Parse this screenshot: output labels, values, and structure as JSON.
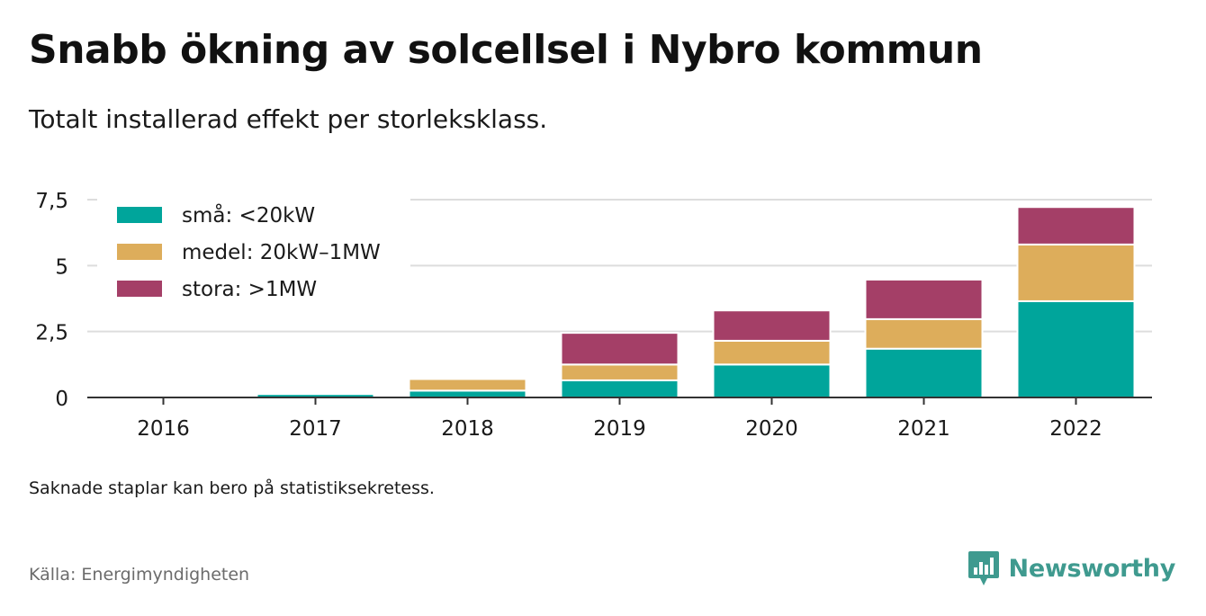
{
  "title": "Snabb ökning av solcellsel i Nybro kommun",
  "subtitle": "Totalt installerad effekt per storleksklass.",
  "note": "Saknade staplar kan bero på statistiksekretess.",
  "source": "Källa: Energimyndigheten",
  "brand": "Newsworthy",
  "colors": {
    "sma": "#00a59b",
    "medel": "#ddad5b",
    "stora": "#a43f67",
    "grid": "#dddddd",
    "axis": "#333333",
    "brand": "#3f9a8f"
  },
  "chart_data": {
    "type": "bar",
    "stacked": true,
    "categories": [
      "2016",
      "2017",
      "2018",
      "2019",
      "2020",
      "2021",
      "2022"
    ],
    "series": [
      {
        "name": "små: <20kW",
        "color": "#00a59b",
        "values": [
          0.02,
          0.13,
          0.26,
          0.65,
          1.25,
          1.85,
          3.65
        ]
      },
      {
        "name": "medel: 20kW–1MW",
        "color": "#ddad5b",
        "values": [
          0,
          0,
          0.44,
          0.6,
          0.9,
          1.12,
          2.15
        ]
      },
      {
        "name": "stora: >1MW",
        "color": "#a43f67",
        "values": [
          0,
          0,
          0,
          1.2,
          1.15,
          1.5,
          1.42
        ]
      }
    ],
    "yticks": [
      0,
      2.5,
      5,
      7.5
    ],
    "ytick_labels": [
      "0",
      "2,5",
      "5",
      "7,5"
    ],
    "ylim": [
      0,
      7.5
    ],
    "xlabel": "",
    "ylabel": "",
    "grid": true,
    "legend_position": "top-left"
  }
}
